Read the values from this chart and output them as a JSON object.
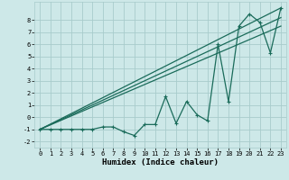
{
  "xlabel": "Humidex (Indice chaleur)",
  "background_color": "#cde8e8",
  "grid_color": "#a8cccc",
  "line_color": "#1a6b5a",
  "x_data": [
    0,
    1,
    2,
    3,
    4,
    5,
    6,
    7,
    8,
    9,
    10,
    11,
    12,
    13,
    14,
    15,
    16,
    17,
    18,
    19,
    20,
    21,
    22,
    23
  ],
  "y_data": [
    -1,
    -1,
    -1,
    -1,
    -1,
    -1,
    -0.8,
    -0.8,
    -1.2,
    -1.5,
    -0.6,
    -0.6,
    1.7,
    -0.5,
    1.3,
    0.2,
    -0.3,
    6.0,
    1.3,
    7.5,
    8.5,
    7.8,
    5.3,
    9.0
  ],
  "line1_x": [
    0,
    23
  ],
  "line1_y": [
    -1,
    7.5
  ],
  "line2_x": [
    0,
    23
  ],
  "line2_y": [
    -1,
    8.2
  ],
  "line3_x": [
    0,
    23
  ],
  "line3_y": [
    -1,
    9.0
  ],
  "ylim": [
    -2.5,
    9.5
  ],
  "xlim": [
    -0.5,
    23.5
  ],
  "yticks": [
    -2,
    -1,
    0,
    1,
    2,
    3,
    4,
    5,
    6,
    7,
    8
  ],
  "xticks": [
    0,
    1,
    2,
    3,
    4,
    5,
    6,
    7,
    8,
    9,
    10,
    11,
    12,
    13,
    14,
    15,
    16,
    17,
    18,
    19,
    20,
    21,
    22,
    23
  ],
  "tick_fontsize": 5.0,
  "label_fontsize": 6.5
}
